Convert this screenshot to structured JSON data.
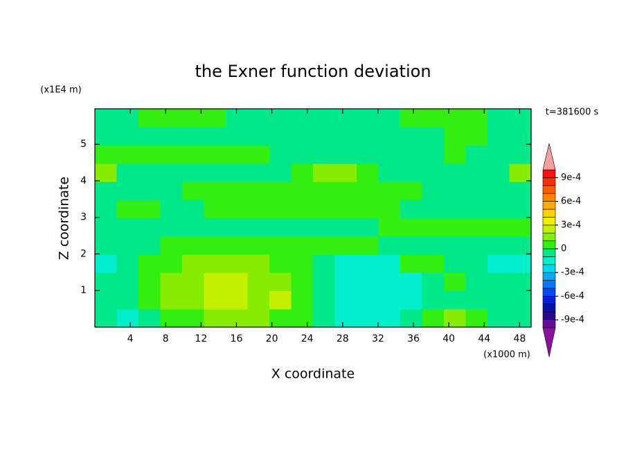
{
  "chart_data": {
    "type": "contour",
    "title": "the Exner function deviation",
    "x_label": "X coordinate",
    "y_label": "Z coordinate",
    "x_unit": "(x1000 m)",
    "y_unit": "(x1E4 m)",
    "annotation": "t=381600 s",
    "xlim": [
      0,
      49.3
    ],
    "ylim": [
      0,
      5.97
    ],
    "xticks": [
      4,
      8,
      12,
      16,
      20,
      24,
      28,
      32,
      36,
      40,
      44,
      48
    ],
    "yticks": [
      1,
      2,
      3,
      4,
      5
    ],
    "levels": [
      -0.001,
      -0.0009,
      -0.0008,
      -0.0007,
      -0.0006,
      -0.0005,
      -0.0004,
      -0.0003,
      -0.0002,
      -0.0001,
      0,
      0.0001,
      0.0002,
      0.0003,
      0.0004,
      0.0005,
      0.0006,
      0.0007,
      0.0008,
      0.0009,
      0.001
    ],
    "level_colors": [
      "#6a0a9a",
      "#2a0a88",
      "#0c10a8",
      "#0020d8",
      "#0048f8",
      "#0078ff",
      "#00aaff",
      "#00d8f0",
      "#00eecc",
      "#00e88a",
      "#33ee11",
      "#88ec00",
      "#c4f000",
      "#eef000",
      "#ffd200",
      "#ffaa00",
      "#ff8400",
      "#ff5c00",
      "#ff3000",
      "#ff1010"
    ],
    "extend_colors": [
      "#8a10a0",
      "#f4a0a0"
    ],
    "colorbar_ticks": [
      {
        "value": 0.0009,
        "label": "9e-4"
      },
      {
        "value": 0.0006,
        "label": "6e-4"
      },
      {
        "value": 0.0003,
        "label": "3e-4"
      },
      0,
      {
        "value": -0.0003,
        "label": "-3e-4"
      },
      {
        "value": -0.0006,
        "label": "-6e-4"
      },
      {
        "value": -0.0009,
        "label": "-9e-4"
      }
    ],
    "z": [
      [
        -5e-05,
        -0.00015,
        -5e-05,
        5e-05,
        5e-05,
        0.00015,
        0.00015,
        0.00015,
        5e-05,
        5e-05,
        -5e-05,
        -0.00015,
        -0.00015,
        -0.00015,
        -5e-05,
        5e-05,
        0.00015,
        5e-05,
        -5e-05,
        -5e-05
      ],
      [
        -5e-05,
        -5e-05,
        5e-05,
        0.00015,
        0.00015,
        0.00025,
        0.00025,
        0.00015,
        0.00025,
        5e-05,
        -5e-05,
        -0.00015,
        -0.00015,
        -0.00015,
        -0.00015,
        -5e-05,
        -5e-05,
        -5e-05,
        -5e-05,
        -5e-05
      ],
      [
        -5e-05,
        -5e-05,
        5e-05,
        0.00015,
        0.00015,
        0.00025,
        0.00025,
        0.00015,
        0.00015,
        5e-05,
        -5e-05,
        -0.00015,
        -0.00015,
        -0.00015,
        -0.00015,
        -5e-05,
        5e-05,
        -5e-05,
        -5e-05,
        -5e-05
      ],
      [
        -0.00015,
        -5e-05,
        5e-05,
        5e-05,
        0.00015,
        0.00015,
        0.00015,
        0.00015,
        5e-05,
        5e-05,
        -5e-05,
        -0.00015,
        -0.00015,
        -0.00015,
        5e-05,
        5e-05,
        -5e-05,
        -5e-05,
        -0.00015,
        -0.00015
      ],
      [
        -5e-05,
        -5e-05,
        -5e-05,
        5e-05,
        5e-05,
        5e-05,
        5e-05,
        5e-05,
        5e-05,
        5e-05,
        5e-05,
        5e-05,
        5e-05,
        -5e-05,
        -5e-05,
        -5e-05,
        -5e-05,
        -5e-05,
        -5e-05,
        -5e-05
      ],
      [
        -5e-05,
        -5e-05,
        -5e-05,
        -5e-05,
        -5e-05,
        -5e-05,
        -5e-05,
        -5e-05,
        -5e-05,
        -5e-05,
        -5e-05,
        -5e-05,
        -5e-05,
        5e-05,
        5e-05,
        5e-05,
        5e-05,
        5e-05,
        5e-05,
        5e-05
      ],
      [
        -5e-05,
        5e-05,
        5e-05,
        -5e-05,
        -5e-05,
        5e-05,
        5e-05,
        5e-05,
        5e-05,
        5e-05,
        5e-05,
        5e-05,
        5e-05,
        5e-05,
        -5e-05,
        -5e-05,
        -5e-05,
        -5e-05,
        -5e-05,
        -5e-05
      ],
      [
        -5e-05,
        -5e-05,
        -5e-05,
        -5e-05,
        5e-05,
        5e-05,
        5e-05,
        5e-05,
        5e-05,
        5e-05,
        5e-05,
        5e-05,
        5e-05,
        5e-05,
        5e-05,
        -5e-05,
        -5e-05,
        -5e-05,
        -5e-05,
        -5e-05
      ],
      [
        0.00015,
        -5e-05,
        -5e-05,
        -5e-05,
        -5e-05,
        -5e-05,
        -5e-05,
        -5e-05,
        -5e-05,
        5e-05,
        0.00015,
        0.00015,
        5e-05,
        -5e-05,
        -5e-05,
        -5e-05,
        -5e-05,
        -5e-05,
        -5e-05,
        0.00015
      ],
      [
        5e-05,
        5e-05,
        5e-05,
        5e-05,
        5e-05,
        5e-05,
        5e-05,
        5e-05,
        -5e-05,
        -5e-05,
        -5e-05,
        -5e-05,
        -5e-05,
        -5e-05,
        -5e-05,
        -5e-05,
        5e-05,
        -5e-05,
        -5e-05,
        -5e-05
      ],
      [
        -5e-05,
        -5e-05,
        -5e-05,
        -5e-05,
        -5e-05,
        -5e-05,
        -5e-05,
        -5e-05,
        -5e-05,
        -5e-05,
        -5e-05,
        -5e-05,
        -5e-05,
        -5e-05,
        -5e-05,
        -5e-05,
        5e-05,
        5e-05,
        -5e-05,
        -5e-05
      ],
      [
        -5e-05,
        -5e-05,
        5e-05,
        5e-05,
        5e-05,
        5e-05,
        -5e-05,
        -5e-05,
        -5e-05,
        -5e-05,
        -5e-05,
        -5e-05,
        -5e-05,
        -5e-05,
        5e-05,
        5e-05,
        5e-05,
        5e-05,
        -5e-05,
        -5e-05
      ]
    ]
  }
}
